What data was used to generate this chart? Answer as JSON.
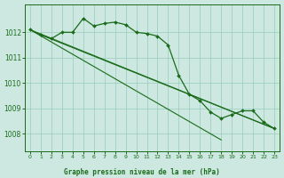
{
  "title": "Graphe pression niveau de la mer (hPa)",
  "xlim": [
    -0.5,
    23.5
  ],
  "ylim": [
    1007.3,
    1013.1
  ],
  "yticks": [
    1008,
    1009,
    1010,
    1011,
    1012
  ],
  "xticks": [
    0,
    1,
    2,
    3,
    4,
    5,
    6,
    7,
    8,
    9,
    10,
    11,
    12,
    13,
    14,
    15,
    16,
    17,
    18,
    19,
    20,
    21,
    22,
    23
  ],
  "bg_color": "#cce8e0",
  "grid_color": "#99ccbb",
  "line_color": "#1a6b1a",
  "main_x": [
    0,
    1,
    2,
    3,
    4,
    5,
    6,
    7,
    8,
    9,
    10,
    11,
    12,
    13,
    14,
    15,
    16,
    17,
    18,
    19,
    20,
    21,
    22,
    23
  ],
  "main_y": [
    1012.1,
    1011.9,
    1011.75,
    1012.0,
    1012.0,
    1012.55,
    1012.25,
    1012.35,
    1012.4,
    1012.3,
    1012.0,
    1011.95,
    1011.85,
    1011.5,
    1010.3,
    1009.55,
    1009.3,
    1008.85,
    1008.6,
    1008.75,
    1008.9,
    1008.9,
    1008.45,
    1008.2
  ],
  "trend1_x": [
    0,
    23
  ],
  "trend1_y": [
    1012.1,
    1008.2
  ],
  "trend2_x": [
    1,
    23
  ],
  "trend2_y": [
    1011.9,
    1008.2
  ],
  "trend3_x": [
    0,
    18
  ],
  "trend3_y": [
    1012.1,
    1007.75
  ]
}
